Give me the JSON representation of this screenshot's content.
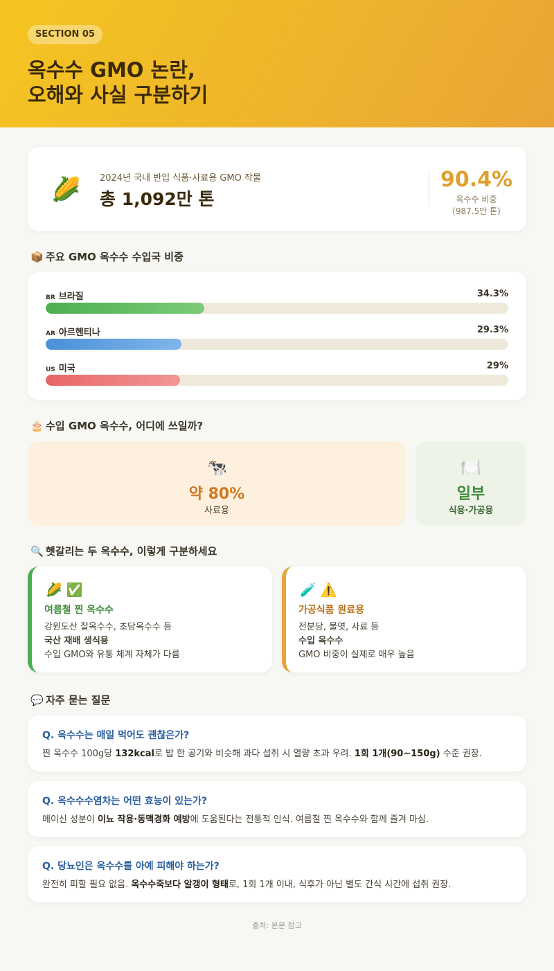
{
  "header": {
    "section": "SECTION 05",
    "title_lines": [
      "옥수수 GMO 논란,",
      "오해와 사실 구분하기"
    ]
  },
  "summary": {
    "icon": "🌽",
    "label": "2024년 국내 반입 식품·사료용 GMO 작물",
    "total": "총 1,092만 톤",
    "share": "90.4%",
    "share_label": "옥수수 비중",
    "share_sub": "(987.5만 톤)"
  },
  "import_share": {
    "icon": "📦",
    "title": "주요 GMO 옥수수 수입국 비중",
    "codes": [
      "BR",
      "AR",
      "US"
    ],
    "categories": [
      "브라질",
      "아르헨티나",
      "미국"
    ],
    "values": [
      34.3,
      29.3,
      29
    ],
    "value_labels": [
      "34.3%",
      "29.3%",
      "29%"
    ],
    "colors": [
      [
        "#4caf50",
        "#7ccb7a"
      ],
      [
        "#4a90d9",
        "#7fb6ea"
      ],
      [
        "#e86565",
        "#f29696"
      ]
    ],
    "xlim": [
      0,
      100
    ]
  },
  "usage": {
    "icon": "🎂",
    "title": "수입 GMO 옥수수, 어디에 쓰일까?",
    "cards": [
      {
        "icon": "🐄",
        "amount": "약 80%",
        "label": "사료용"
      },
      {
        "icon": "🍽️",
        "amount": "일부",
        "label": "식용·가공용"
      }
    ]
  },
  "compare": {
    "icon": "🔍",
    "title": "헷갈리는 두 옥수수, 이렇게 구분하세요",
    "cards": [
      {
        "icons": "🌽 ✅",
        "title": "여름철 찐 옥수수",
        "lines": [
          "강원도산 찰옥수수, 초당옥수수 등",
          "국산 재배 생식용",
          "수입 GMO와 유통 체계 자체가 다름"
        ]
      },
      {
        "icons": "🧪 ⚠️",
        "title": "가공식품 원료용",
        "lines": [
          "전분당, 물엿, 사료 등",
          "수입 옥수수",
          "GMO 비중이 실제로 매우 높음"
        ]
      }
    ]
  },
  "faq": {
    "icon": "💬",
    "title": "자주 묻는 질문",
    "items": [
      {
        "q": "Q. 옥수수는 매일 먹어도 괜찮은가?",
        "a": [
          {
            "text": "찐 옥수수 100g당 ",
            "bold": false
          },
          {
            "text": "132kcal",
            "bold": true
          },
          {
            "text": "로 밥 한 공기와 비슷해 과다 섭취 시 열량 초과 우려. ",
            "bold": false
          },
          {
            "text": "1회 1개(90~150g)",
            "bold": true
          },
          {
            "text": " 수준 권장.",
            "bold": false
          }
        ]
      },
      {
        "q": "Q. 옥수수수염차는 어떤 효능이 있는가?",
        "a": [
          {
            "text": "메이신 성분이 ",
            "bold": false
          },
          {
            "text": "이뇨 작용·동맥경화 예방",
            "bold": true
          },
          {
            "text": "에 도움된다는 전통적 인식. 여름철 찐 옥수수와 함께 즐겨 마심.",
            "bold": false
          }
        ]
      },
      {
        "q": "Q. 당뇨인은 옥수수를 아예 피해야 하는가?",
        "a": [
          {
            "text": "완전히 피할 필요 없음. ",
            "bold": false
          },
          {
            "text": "옥수수죽보다 알갱이 형태",
            "bold": true
          },
          {
            "text": "로, 1회 1개 이내, 식후가 아닌 별도 간식 시간에 섭취 권장.",
            "bold": false
          }
        ]
      }
    ]
  },
  "footer": "출처: 본문 참고"
}
